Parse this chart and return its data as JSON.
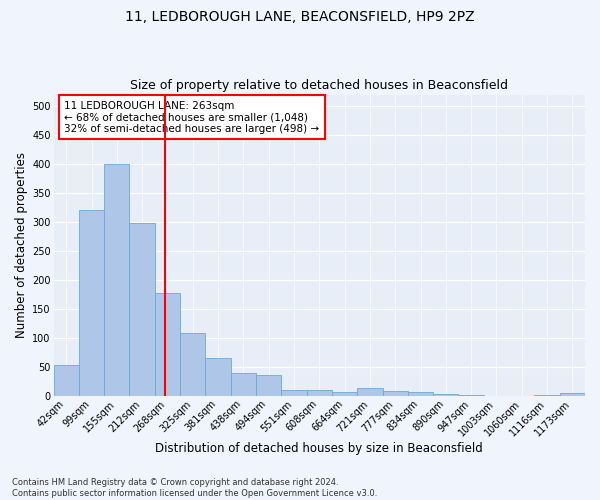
{
  "title_line1": "11, LEDBOROUGH LANE, BEACONSFIELD, HP9 2PZ",
  "title_line2": "Size of property relative to detached houses in Beaconsfield",
  "xlabel": "Distribution of detached houses by size in Beaconsfield",
  "ylabel": "Number of detached properties",
  "footnote": "Contains HM Land Registry data © Crown copyright and database right 2024.\nContains public sector information licensed under the Open Government Licence v3.0.",
  "bin_labels": [
    "42sqm",
    "99sqm",
    "155sqm",
    "212sqm",
    "268sqm",
    "325sqm",
    "381sqm",
    "438sqm",
    "494sqm",
    "551sqm",
    "608sqm",
    "664sqm",
    "721sqm",
    "777sqm",
    "834sqm",
    "890sqm",
    "947sqm",
    "1003sqm",
    "1060sqm",
    "1116sqm",
    "1173sqm"
  ],
  "bar_values": [
    53,
    320,
    400,
    298,
    178,
    108,
    65,
    40,
    36,
    10,
    10,
    6,
    14,
    8,
    6,
    4,
    2,
    0,
    0,
    2,
    5
  ],
  "bar_color": "#aec6e8",
  "bar_edge_color": "#6aaad4",
  "vline_color": "red",
  "annotation_text": "11 LEDBOROUGH LANE: 263sqm\n← 68% of detached houses are smaller (1,048)\n32% of semi-detached houses are larger (498) →",
  "annotation_box_color": "white",
  "annotation_box_edge_color": "red",
  "ylim": [
    0,
    520
  ],
  "yticks": [
    0,
    50,
    100,
    150,
    200,
    250,
    300,
    350,
    400,
    450,
    500
  ],
  "fig_background": "#f0f4fc",
  "plot_background": "#e8eef8",
  "grid_color": "white",
  "title_fontsize": 10,
  "subtitle_fontsize": 9,
  "axis_label_fontsize": 8.5,
  "tick_fontsize": 7,
  "annotation_fontsize": 7.5,
  "footnote_fontsize": 6
}
